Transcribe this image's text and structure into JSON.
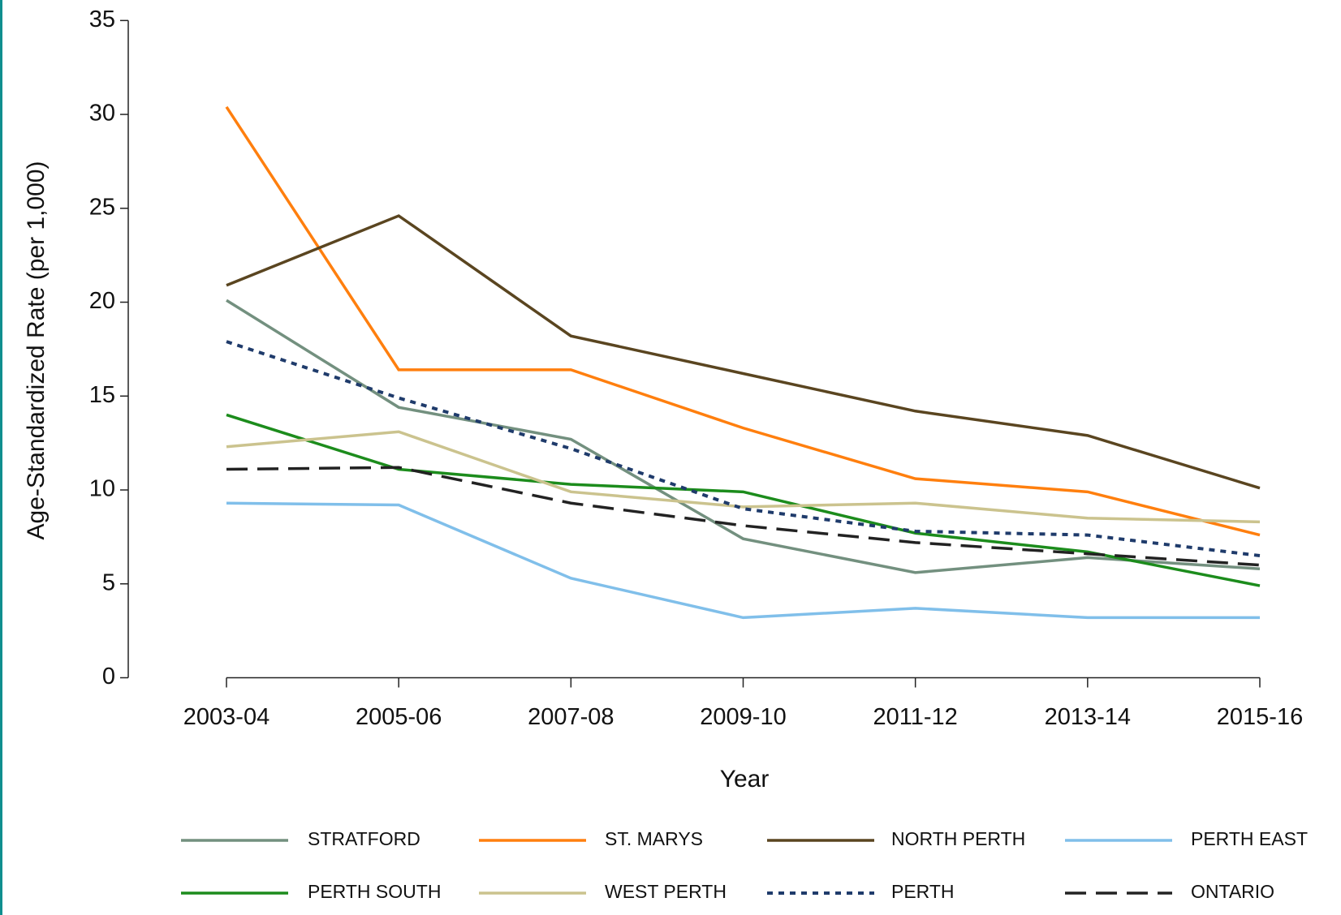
{
  "chart_data": {
    "type": "line",
    "x_label": "Year",
    "y_label": "Age-Standardized Rate (per 1,000)",
    "categories": [
      "2003-04",
      "2005-06",
      "2007-08",
      "2009-10",
      "2011-12",
      "2013-14",
      "2015-16"
    ],
    "ylim": [
      0,
      35
    ],
    "yticks": [
      0,
      5,
      10,
      15,
      20,
      25,
      30,
      35
    ],
    "legend_position": "bottom",
    "series": [
      {
        "name": "STRATFORD",
        "color": "#73907f",
        "style": "solid",
        "values": [
          20.1,
          14.4,
          12.7,
          7.4,
          5.6,
          6.4,
          5.8
        ]
      },
      {
        "name": "ST. MARYS",
        "color": "#ff7f0e",
        "style": "solid",
        "values": [
          30.4,
          16.4,
          16.4,
          13.3,
          10.6,
          9.9,
          7.6
        ]
      },
      {
        "name": "NORTH PERTH",
        "color": "#5a4520",
        "style": "solid",
        "values": [
          20.9,
          24.6,
          18.2,
          16.2,
          14.2,
          12.9,
          10.1
        ]
      },
      {
        "name": "PERTH EAST",
        "color": "#80bfea",
        "style": "solid",
        "values": [
          9.3,
          9.2,
          5.3,
          3.2,
          3.7,
          3.2,
          3.2
        ]
      },
      {
        "name": "PERTH SOUTH",
        "color": "#1c8c1c",
        "style": "solid",
        "values": [
          14.0,
          11.1,
          10.3,
          9.9,
          7.7,
          6.7,
          4.9
        ]
      },
      {
        "name": "WEST PERTH",
        "color": "#cbc38e",
        "style": "solid",
        "values": [
          12.3,
          13.1,
          9.9,
          9.1,
          9.3,
          8.5,
          8.3
        ]
      },
      {
        "name": "PERTH",
        "color": "#1f3b6b",
        "style": "dotted",
        "values": [
          17.9,
          14.9,
          12.2,
          9.0,
          7.8,
          7.6,
          6.5
        ]
      },
      {
        "name": "ONTARIO",
        "color": "#222222",
        "style": "dashed",
        "values": [
          11.1,
          11.2,
          9.3,
          8.1,
          7.2,
          6.6,
          6.0
        ]
      }
    ]
  }
}
